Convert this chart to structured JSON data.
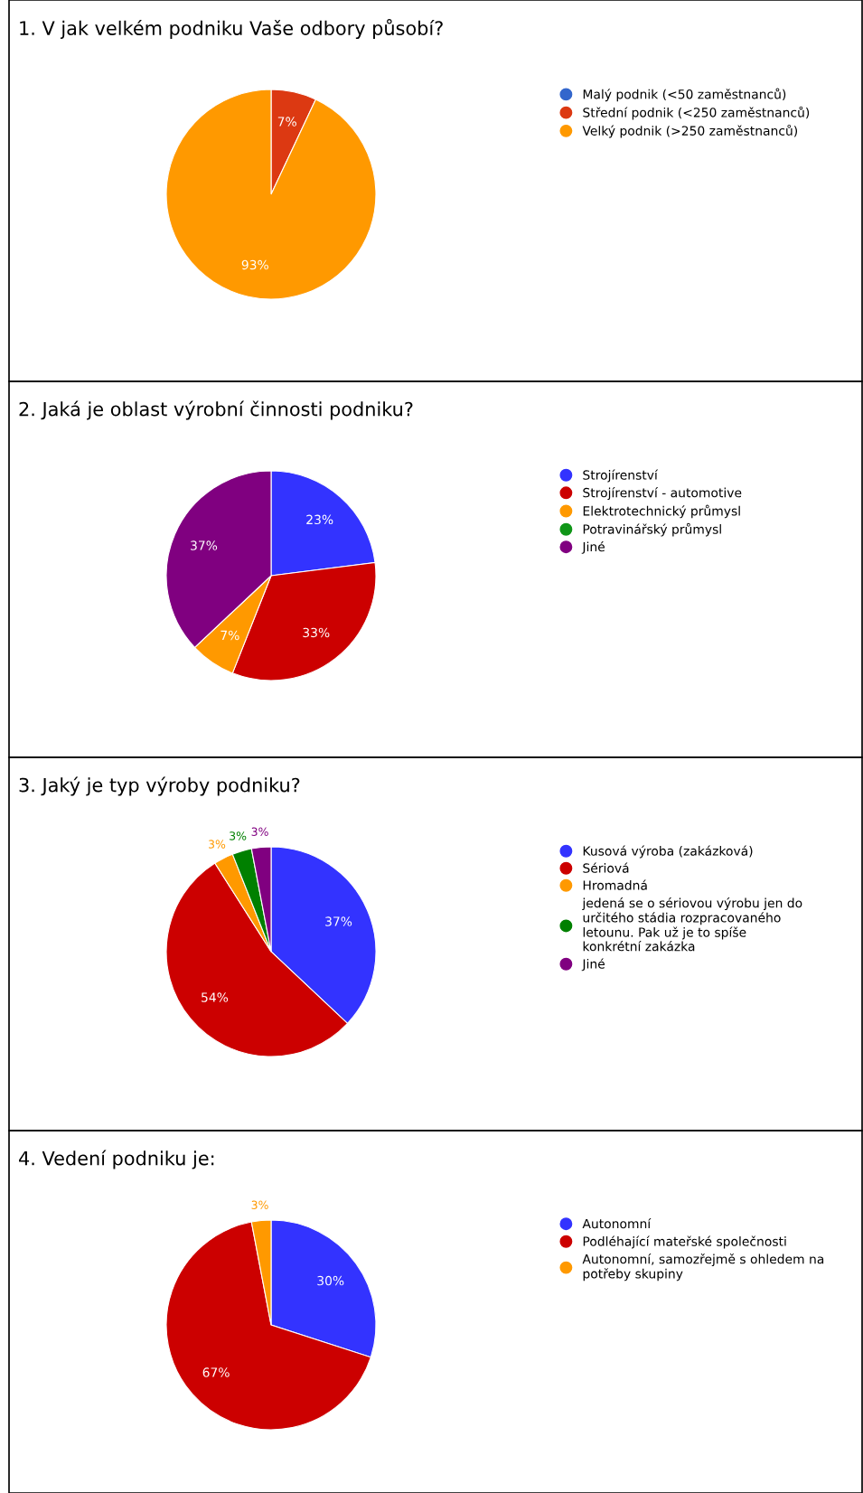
{
  "chart_data": [
    {
      "type": "pie",
      "title": "1. V jak velkém podniku Vaše odbory působí?",
      "categories": [
        "Malý podnik (<50 zaměstnanců)",
        "Střední podnik (<250 zaměstnanců)",
        "Velký podnik (>250 zaměstnanců)"
      ],
      "values": [
        0,
        7,
        93
      ],
      "colors": [
        "#3366cc",
        "#dc3912",
        "#ff9900"
      ],
      "value_labels": [
        null,
        "7%",
        "93%"
      ],
      "legend": "right"
    },
    {
      "type": "pie",
      "title": "2. Jaká je oblast výrobní činnosti podniku?",
      "categories": [
        "Strojírenství",
        "Strojírenství - automotive",
        "Elektrotechnický průmysl",
        "Potravinářský průmysl",
        "Jiné"
      ],
      "values": [
        23,
        33,
        7,
        0,
        37
      ],
      "colors": [
        "#3333ff",
        "#cc0000",
        "#ff9900",
        "#109618",
        "#800080"
      ],
      "value_labels": [
        "23%",
        "33%",
        "7%",
        null,
        "37%"
      ],
      "legend": "right"
    },
    {
      "type": "pie",
      "title": "3. Jaký je typ výroby podniku?",
      "categories": [
        "Kusová výroba (zakázková)",
        "Sériová",
        "Hromadná",
        "jedená se o sériovou výrobu jen do určitého stádia rozpracovaného letounu. Pak už je to spíše konkrétní zakázka",
        "Jiné"
      ],
      "values": [
        37,
        54,
        3,
        3,
        3
      ],
      "colors": [
        "#3333ff",
        "#cc0000",
        "#ff9900",
        "#008000",
        "#800080"
      ],
      "value_labels": [
        "37%",
        "54%",
        "3%",
        "3%",
        "3%"
      ],
      "legend": "right"
    },
    {
      "type": "pie",
      "title": "4. Vedení podniku je:",
      "categories": [
        "Autonomní",
        "Podléhající mateřské společnosti",
        "Autonomní, samozřejmě s ohledem na potřeby skupiny"
      ],
      "values": [
        30,
        67,
        3
      ],
      "colors": [
        "#3333ff",
        "#cc0000",
        "#ff9900"
      ],
      "value_labels": [
        "30%",
        "67%",
        "3%"
      ],
      "legend": "right"
    }
  ]
}
